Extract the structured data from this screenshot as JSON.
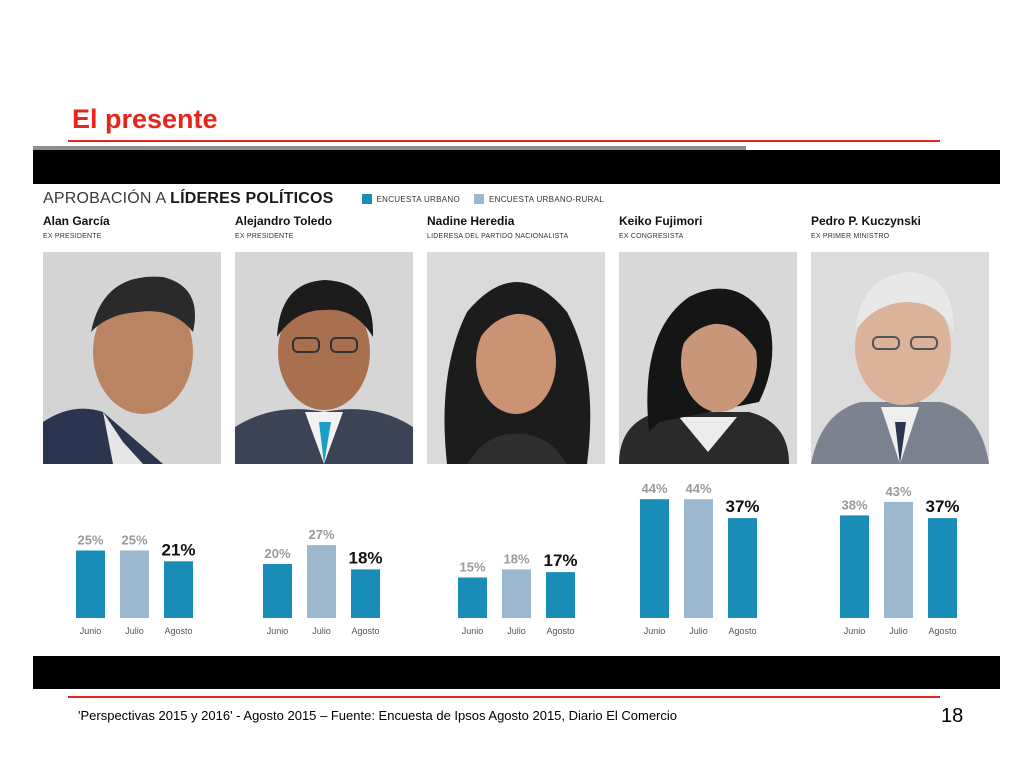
{
  "slide": {
    "title": "El presente",
    "footer_source": "'Perspectivas 2015 y 2016' - Agosto 2015 – Fuente: Encuesta de Ipsos Agosto 2015, Diario El Comercio",
    "page_number": "18"
  },
  "colors": {
    "accent_red": "#e8251d",
    "urbano": "#1a8cb8",
    "urbano_rural": "#9bb8cf"
  },
  "chart_data": {
    "type": "bar",
    "title_prefix": "APROBACIÓN A ",
    "title_bold": "LÍDERES POLÍTICOS",
    "legend": [
      {
        "label": "ENCUESTA URBANO",
        "color": "#1a8cb8"
      },
      {
        "label": "ENCUESTA URBANO-RURAL",
        "color": "#9bb8cf"
      }
    ],
    "categories": [
      "Junio",
      "Julio",
      "Agosto"
    ],
    "bar_colors": [
      "#1a8cb8",
      "#9bb8cf",
      "#1a8cb8"
    ],
    "ylim": [
      0,
      50
    ],
    "leaders": [
      {
        "name": "Alan García",
        "role": "EX PRESIDENTE",
        "values": [
          25,
          25,
          21
        ],
        "labels": [
          "25%",
          "25%",
          "21%"
        ]
      },
      {
        "name": "Alejandro Toledo",
        "role": "EX PRESIDENTE",
        "values": [
          20,
          27,
          18
        ],
        "labels": [
          "20%",
          "27%",
          "18%"
        ]
      },
      {
        "name": "Nadine Heredia",
        "role": "LIDERESA DEL PARTIDO NACIONALISTA",
        "values": [
          15,
          18,
          17
        ],
        "labels": [
          "15%",
          "18%",
          "17%"
        ]
      },
      {
        "name": "Keiko Fujimori",
        "role": "EX CONGRESISTA",
        "values": [
          44,
          44,
          37
        ],
        "labels": [
          "44%",
          "44%",
          "37%"
        ]
      },
      {
        "name": "Pedro P. Kuczynski",
        "role": "EX PRIMER MINISTRO",
        "values": [
          38,
          43,
          37
        ],
        "labels": [
          "38%",
          "43%",
          "37%"
        ]
      }
    ]
  }
}
